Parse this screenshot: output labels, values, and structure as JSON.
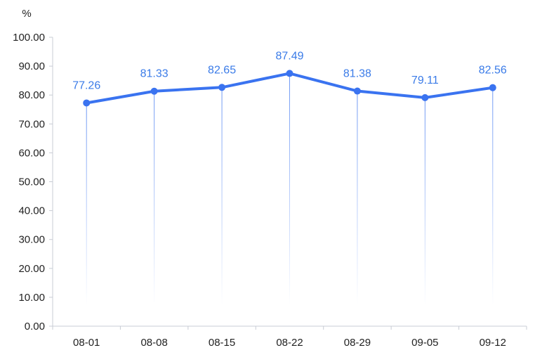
{
  "chart_data": {
    "type": "line",
    "unit_label": "%",
    "categories": [
      "08-01",
      "08-08",
      "08-15",
      "08-22",
      "08-29",
      "09-05",
      "09-12"
    ],
    "series": [
      {
        "values": [
          77.26,
          81.33,
          82.65,
          87.49,
          81.38,
          79.11,
          82.56
        ]
      }
    ],
    "data_labels": [
      "77.26",
      "81.33",
      "82.65",
      "87.49",
      "81.38",
      "79.11",
      "82.56"
    ],
    "y_ticks": [
      "0.00",
      "10.00",
      "20.00",
      "30.00",
      "40.00",
      "50.00",
      "60.00",
      "70.00",
      "80.00",
      "90.00",
      "100.00"
    ],
    "ylim": [
      0,
      100
    ],
    "grid": false,
    "drop_lines": true,
    "colors": {
      "line": "#3a73f0",
      "label": "#3a7be8",
      "axis": "#c8ccd4",
      "text": "#222222"
    }
  }
}
